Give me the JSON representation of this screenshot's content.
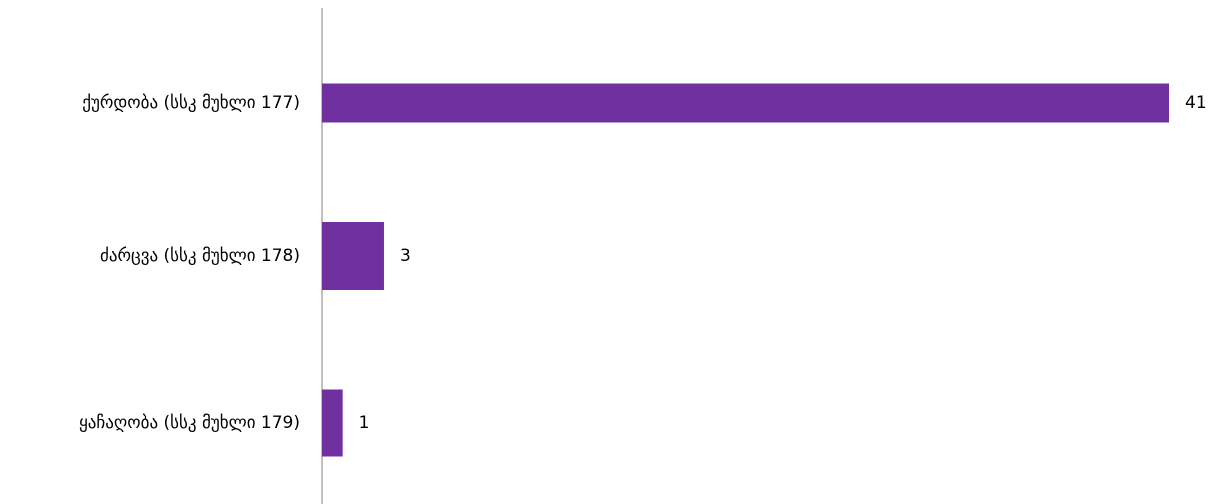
{
  "chart_data": {
    "type": "bar",
    "orientation": "horizontal",
    "categories": [
      "ქურდობა (სსკ მუხლი 177)",
      "ძარცვა (სსკ მუხლი 178)",
      "ყაჩაღობა (სსკ მუხლი 179)"
    ],
    "values": [
      41,
      3,
      1
    ],
    "color": "#7030a0"
  }
}
